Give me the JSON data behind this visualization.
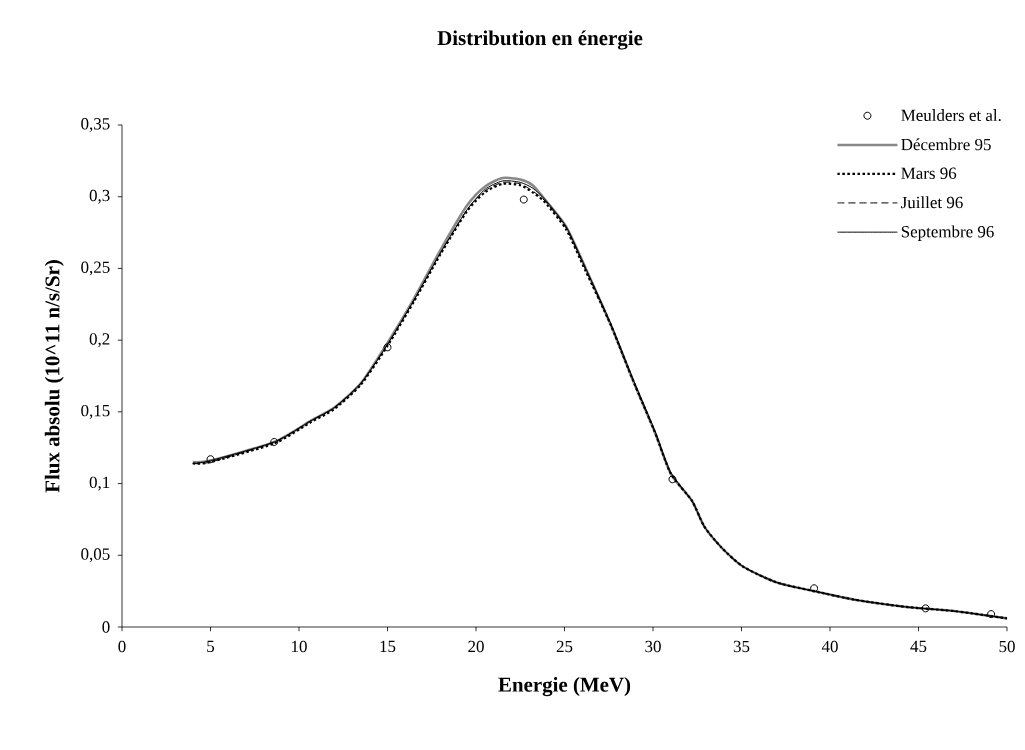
{
  "chart_data": {
    "type": "line",
    "title": "Distribution en énergie",
    "xlabel": "Energie (MeV)",
    "ylabel": "Flux absolu (10^11 n/s/Sr)",
    "xlim": [
      0,
      50
    ],
    "xticks": [
      0,
      5,
      10,
      15,
      20,
      25,
      30,
      35,
      40,
      45,
      50
    ],
    "ylim": [
      0,
      0.35
    ],
    "yticks": [
      {
        "value": 0,
        "label": "0"
      },
      {
        "value": 0.05,
        "label": "0,05"
      },
      {
        "value": 0.1,
        "label": "0,1"
      },
      {
        "value": 0.15,
        "label": "0,15"
      },
      {
        "value": 0.2,
        "label": "0,2"
      },
      {
        "value": 0.25,
        "label": "0,25"
      },
      {
        "value": 0.3,
        "label": "0,3"
      },
      {
        "value": 0.35,
        "label": "0,35"
      }
    ],
    "legend": "top right",
    "series": [
      {
        "name": "Meulders et al.",
        "type": "scatter",
        "marker": "circle",
        "color": "#000000",
        "x": [
          5.0,
          8.6,
          15.0,
          22.7,
          31.1,
          39.1,
          45.4,
          49.1
        ],
        "values": [
          0.117,
          0.129,
          0.195,
          0.298,
          0.103,
          0.027,
          0.013,
          0.009
        ]
      },
      {
        "name": "Décembre 95",
        "line_style": "solid",
        "marker": "none",
        "color": "#888888",
        "x": [
          4.0,
          5.0,
          8.6,
          10.7,
          12.0,
          13.5,
          15.0,
          16.5,
          18.0,
          19.5,
          20.5,
          21.5,
          22.5,
          23.2,
          23.9,
          25.1,
          26.2,
          27.6,
          28.9,
          30.1,
          31.0,
          32.2,
          32.9,
          33.9,
          35.1,
          37.0,
          39.1,
          41.4,
          44.3,
          47.1,
          50.0
        ],
        "values": [
          0.115,
          0.116,
          0.129,
          0.144,
          0.153,
          0.17,
          0.198,
          0.229,
          0.263,
          0.294,
          0.307,
          0.313,
          0.312,
          0.308,
          0.298,
          0.279,
          0.25,
          0.211,
          0.171,
          0.136,
          0.107,
          0.088,
          0.07,
          0.055,
          0.042,
          0.031,
          0.025,
          0.019,
          0.014,
          0.011,
          0.006
        ]
      },
      {
        "name": "Mars 96",
        "line_style": "dotted",
        "marker": "none",
        "color": "#000000",
        "x": [
          4.0,
          5.0,
          8.6,
          10.7,
          12.0,
          13.5,
          15.0,
          16.5,
          18.0,
          19.5,
          20.5,
          21.5,
          22.5,
          23.2,
          23.9,
          25.1,
          26.2,
          27.6,
          28.9,
          30.1,
          31.0,
          32.2,
          32.9,
          33.9,
          35.1,
          37.0,
          39.1,
          41.4,
          44.3,
          47.1,
          50.0
        ],
        "values": [
          0.114,
          0.115,
          0.128,
          0.143,
          0.152,
          0.169,
          0.196,
          0.227,
          0.26,
          0.29,
          0.303,
          0.309,
          0.308,
          0.303,
          0.296,
          0.277,
          0.248,
          0.211,
          0.171,
          0.136,
          0.107,
          0.088,
          0.07,
          0.055,
          0.042,
          0.031,
          0.025,
          0.019,
          0.014,
          0.011,
          0.006
        ]
      },
      {
        "name": "Juillet 96",
        "line_style": "dashed",
        "marker": "none",
        "color": "#000000",
        "x": [
          4.0,
          5.0,
          8.6,
          10.7,
          12.0,
          13.5,
          15.0,
          16.5,
          18.0,
          19.5,
          20.5,
          21.5,
          22.5,
          23.2,
          23.9,
          25.1,
          26.2,
          27.6,
          28.9,
          30.1,
          31.0,
          32.2,
          32.9,
          33.9,
          35.1,
          37.0,
          39.1,
          41.4,
          44.3,
          47.1,
          50.0
        ],
        "values": [
          0.114,
          0.115,
          0.129,
          0.144,
          0.153,
          0.17,
          0.197,
          0.228,
          0.261,
          0.291,
          0.304,
          0.31,
          0.309,
          0.304,
          0.297,
          0.278,
          0.249,
          0.211,
          0.171,
          0.136,
          0.107,
          0.088,
          0.07,
          0.055,
          0.042,
          0.031,
          0.025,
          0.019,
          0.014,
          0.011,
          0.006
        ]
      },
      {
        "name": "Septembre 96",
        "line_style": "solid",
        "marker": "none",
        "color": "#000000",
        "x": [
          4.0,
          5.0,
          8.6,
          10.7,
          12.0,
          13.5,
          15.0,
          16.5,
          18.0,
          19.5,
          20.5,
          21.5,
          22.5,
          23.2,
          23.9,
          25.1,
          26.2,
          27.6,
          28.9,
          30.1,
          31.0,
          32.2,
          32.9,
          33.9,
          35.1,
          37.0,
          39.1,
          41.4,
          44.3,
          47.1,
          50.0
        ],
        "values": [
          0.114,
          0.116,
          0.129,
          0.144,
          0.153,
          0.17,
          0.197,
          0.228,
          0.261,
          0.291,
          0.305,
          0.311,
          0.31,
          0.306,
          0.298,
          0.279,
          0.25,
          0.212,
          0.172,
          0.137,
          0.108,
          0.088,
          0.07,
          0.055,
          0.042,
          0.031,
          0.025,
          0.019,
          0.014,
          0.011,
          0.006
        ]
      }
    ]
  }
}
